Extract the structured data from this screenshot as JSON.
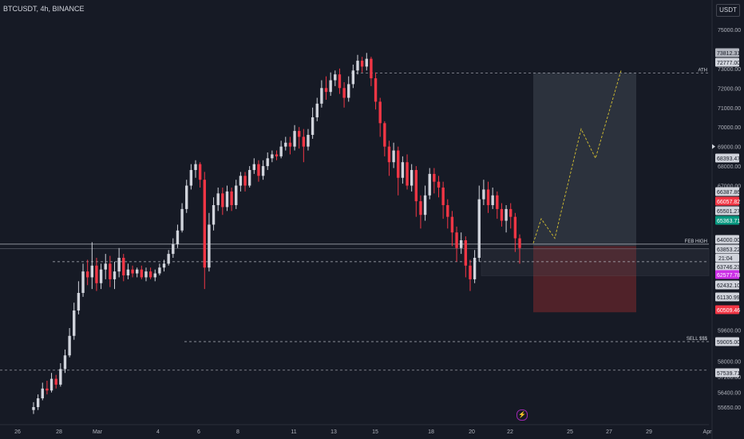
{
  "header": {
    "title": "BTCUSDT, 4h, BINANCE",
    "currency": "USDT"
  },
  "colors": {
    "background": "#161a25",
    "bull": "#d1d4dc",
    "bear": "#f23645",
    "forecast": "#c8b532",
    "target_zone": "#3c424f",
    "stop_zone": "#5a242a",
    "range_box": "#434651"
  },
  "chart_data": {
    "type": "candlestick",
    "symbol": "BTCUSDT",
    "interval": "4h",
    "exchange": "BINANCE",
    "xlabels": [
      "26",
      "28",
      "Mar",
      "4",
      "6",
      "8",
      "11",
      "13",
      "15",
      "18",
      "20",
      "22",
      "25",
      "27",
      "29",
      "Apr"
    ],
    "ylabels": [
      "75000.00",
      "73000.00",
      "72000.00",
      "71000.00",
      "70000.00",
      "69000.00",
      "68000.00",
      "67000.00",
      "59600.00",
      "58000.00",
      "57200.00",
      "56400.00",
      "55650.00"
    ],
    "ylim": [
      55200,
      75900
    ],
    "candles": [
      [
        55500,
        55650,
        55300,
        55900
      ],
      [
        55650,
        56100,
        55500,
        56300
      ],
      [
        56100,
        56600,
        56000,
        56900
      ],
      [
        56600,
        56500,
        56300,
        57000
      ],
      [
        56500,
        57100,
        56400,
        57400
      ],
      [
        57100,
        56800,
        56600,
        57300
      ],
      [
        56800,
        57600,
        56700,
        57900
      ],
      [
        57600,
        58300,
        57400,
        58600
      ],
      [
        58300,
        59300,
        58200,
        59700
      ],
      [
        59300,
        60600,
        59100,
        61000
      ],
      [
        60600,
        61500,
        60400,
        62100
      ],
      [
        61500,
        62600,
        61300,
        63000
      ],
      [
        62600,
        62300,
        61900,
        63200
      ],
      [
        62300,
        62900,
        61700,
        64100
      ],
      [
        62900,
        62000,
        61600,
        63300
      ],
      [
        62000,
        62700,
        61700,
        63000
      ],
      [
        62700,
        63000,
        62200,
        63500
      ],
      [
        63000,
        62200,
        61800,
        63400
      ],
      [
        62200,
        62600,
        61700,
        63100
      ],
      [
        62600,
        63300,
        62300,
        63800
      ],
      [
        63300,
        62400,
        62100,
        63500
      ],
      [
        62400,
        62700,
        62200,
        63000
      ],
      [
        62700,
        62500,
        62300,
        62900
      ],
      [
        62500,
        62700,
        62300,
        62800
      ],
      [
        62700,
        62300,
        62200,
        62900
      ],
      [
        62300,
        62600,
        62100,
        62800
      ],
      [
        62600,
        62300,
        62200,
        62800
      ],
      [
        62300,
        62500,
        62100,
        62700
      ],
      [
        62500,
        62800,
        62400,
        63000
      ],
      [
        62800,
        63000,
        62600,
        63200
      ],
      [
        63000,
        63500,
        62900,
        63700
      ],
      [
        63500,
        64000,
        63300,
        64300
      ],
      [
        64000,
        64700,
        63800,
        65000
      ],
      [
        64700,
        65800,
        64600,
        66100
      ],
      [
        65800,
        67000,
        65600,
        67300
      ],
      [
        67000,
        67800,
        66800,
        68100
      ],
      [
        67800,
        68100,
        67400,
        68300
      ],
      [
        68100,
        67300,
        66900,
        68200
      ],
      [
        67300,
        62800,
        61700,
        67700
      ],
      [
        62800,
        65000,
        62600,
        65600
      ],
      [
        65000,
        66000,
        64700,
        66400
      ],
      [
        66000,
        66600,
        65700,
        66900
      ],
      [
        66600,
        65900,
        65500,
        66900
      ],
      [
        65900,
        66700,
        65700,
        67000
      ],
      [
        66700,
        66000,
        65700,
        66900
      ],
      [
        66000,
        67000,
        65800,
        67300
      ],
      [
        67000,
        67500,
        66700,
        67700
      ],
      [
        67500,
        67000,
        66700,
        67700
      ],
      [
        67000,
        67800,
        66900,
        68000
      ],
      [
        67800,
        68100,
        67600,
        68400
      ],
      [
        68100,
        67500,
        67200,
        68300
      ],
      [
        67500,
        68000,
        67300,
        68300
      ],
      [
        68000,
        68400,
        67800,
        68700
      ],
      [
        68400,
        68600,
        68200,
        68800
      ],
      [
        68600,
        68500,
        68300,
        68800
      ],
      [
        68500,
        69000,
        68400,
        69300
      ],
      [
        69000,
        69200,
        68800,
        69500
      ],
      [
        69200,
        69000,
        68600,
        69500
      ],
      [
        69000,
        69800,
        68800,
        70100
      ],
      [
        69800,
        69500,
        68900,
        70000
      ],
      [
        69500,
        69000,
        68200,
        69900
      ],
      [
        69000,
        69600,
        68800,
        69900
      ],
      [
        69600,
        70500,
        69400,
        71000
      ],
      [
        70500,
        71200,
        70300,
        71500
      ],
      [
        71200,
        72000,
        71000,
        72400
      ],
      [
        72000,
        71800,
        71400,
        72600
      ],
      [
        71800,
        72400,
        71600,
        72800
      ],
      [
        72400,
        72700,
        72100,
        72900
      ],
      [
        72700,
        72000,
        71700,
        73000
      ],
      [
        72000,
        71500,
        71000,
        72300
      ],
      [
        71500,
        72200,
        71300,
        72600
      ],
      [
        72200,
        72900,
        72000,
        73200
      ],
      [
        72900,
        73400,
        72700,
        73700
      ],
      [
        73400,
        73100,
        72800,
        73600
      ],
      [
        73100,
        73500,
        72900,
        73800
      ],
      [
        73500,
        72500,
        72100,
        73600
      ],
      [
        72500,
        71300,
        70900,
        72800
      ],
      [
        71300,
        70200,
        69500,
        71500
      ],
      [
        70200,
        69000,
        68500,
        70300
      ],
      [
        69000,
        68200,
        67500,
        69300
      ],
      [
        68200,
        68800,
        67900,
        69200
      ],
      [
        68800,
        67400,
        66500,
        69000
      ],
      [
        67400,
        68200,
        67100,
        68500
      ],
      [
        68200,
        67000,
        66800,
        68600
      ],
      [
        67000,
        67800,
        66700,
        68100
      ],
      [
        67800,
        66200,
        65400,
        68000
      ],
      [
        66200,
        65500,
        64800,
        66500
      ],
      [
        65500,
        66500,
        65200,
        67000
      ],
      [
        66500,
        67600,
        66300,
        67900
      ],
      [
        67600,
        67200,
        66600,
        67900
      ],
      [
        67200,
        66900,
        66400,
        67500
      ],
      [
        66900,
        66000,
        65300,
        67200
      ],
      [
        66000,
        65400,
        64800,
        66300
      ],
      [
        65400,
        64600,
        63900,
        65700
      ],
      [
        64600,
        63800,
        63100,
        64900
      ],
      [
        63800,
        64200,
        63500,
        64600
      ],
      [
        64200,
        62900,
        62300,
        64400
      ],
      [
        62900,
        62200,
        61600,
        63200
      ],
      [
        62200,
        63300,
        62000,
        63700
      ],
      [
        63300,
        66300,
        63100,
        67000
      ],
      [
        66300,
        66800,
        66000,
        67300
      ],
      [
        66800,
        66000,
        65600,
        67200
      ],
      [
        66000,
        66500,
        65800,
        66900
      ],
      [
        66500,
        65800,
        65300,
        66700
      ],
      [
        65800,
        65200,
        64900,
        66100
      ],
      [
        65200,
        65800,
        64600,
        66000
      ],
      [
        65800,
        65400,
        64800,
        66100
      ],
      [
        65400,
        64300,
        63600,
        65600
      ],
      [
        64300,
        63800,
        63000,
        64500
      ]
    ],
    "current_candle": {
      "time_to_close": "21:04"
    },
    "price_labels": [
      {
        "text": "73812.31",
        "kind": "hi"
      },
      {
        "text": "72777.00",
        "kind": "level"
      },
      {
        "text": "68393.47",
        "kind": "level"
      },
      {
        "text": "66387.86",
        "kind": "neutral"
      },
      {
        "text": "66057.82",
        "kind": "bear"
      },
      {
        "text": "65501.27",
        "kind": "neutral"
      },
      {
        "text": "65363.71",
        "kind": "bull"
      },
      {
        "text": "64000.00",
        "kind": "level"
      },
      {
        "text": "63853.22",
        "kind": "neutral"
      },
      {
        "text": "63746.23",
        "kind": "neutral"
      },
      {
        "text": "62577.78",
        "kind": "purple"
      },
      {
        "text": "62432.10",
        "kind": "neutral"
      },
      {
        "text": "61130.99",
        "kind": "neutral"
      },
      {
        "text": "60509.46",
        "kind": "bear"
      },
      {
        "text": "59005.00",
        "kind": "level"
      },
      {
        "text": "57539.71",
        "kind": "level"
      }
    ],
    "annotations": [
      {
        "label": "ATH",
        "price": 72777.0,
        "style": "dashed"
      },
      {
        "label": "FEB HIGH",
        "price": 64000.0,
        "style": "solid"
      },
      {
        "label": "SELL $$$",
        "price": 59005.0,
        "style": "dashed"
      },
      {
        "label": "",
        "price": 57539.71,
        "style": "dashed"
      },
      {
        "label": "",
        "price": 63100.0,
        "style": "dashed"
      }
    ],
    "range_box": {
      "top": 63750,
      "bottom": 62380
    },
    "position": {
      "entry": 63900,
      "target": 72777.0,
      "stop": 60509.46
    },
    "forecast_path": [
      64050,
      65300,
      64300,
      69900,
      68400,
      72900
    ]
  }
}
